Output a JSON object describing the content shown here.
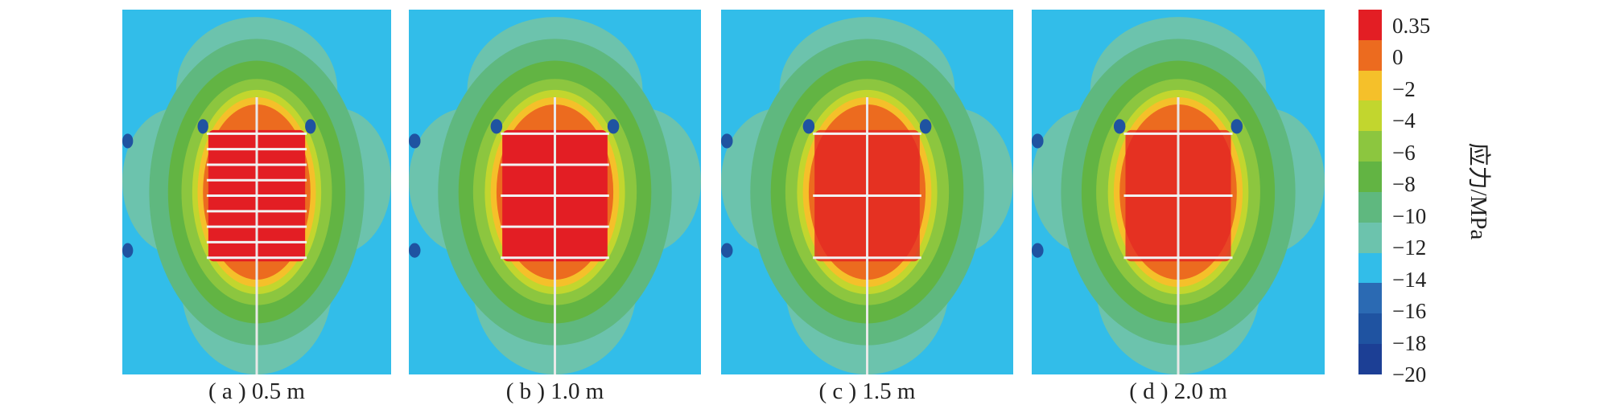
{
  "figure": {
    "panels": [
      {
        "caption": "( a ) 0.5 m",
        "spacing_m": 0.5,
        "bolt_count": 9
      },
      {
        "caption": "( b ) 1.0 m",
        "spacing_m": 1.0,
        "bolt_count": 5
      },
      {
        "caption": "( c ) 1.5 m",
        "spacing_m": 1.5,
        "bolt_count": 3
      },
      {
        "caption": "( d ) 2.0 m",
        "spacing_m": 2.0,
        "bolt_count": 3
      }
    ],
    "legend": {
      "title": "应力/MPa",
      "ticks": [
        "0.35",
        "0",
        "−2",
        "−4",
        "−6",
        "−8",
        "−10",
        "−12",
        "−14",
        "−16",
        "−18",
        "−20"
      ],
      "colors": [
        "#e31e24",
        "#ec6b1f",
        "#f5c02a",
        "#c2d62e",
        "#8cc63f",
        "#62b443",
        "#5fb87f",
        "#6cc3ad",
        "#32bde9",
        "#2b6ab3",
        "#1f53a1",
        "#1c3f95"
      ]
    }
  }
}
